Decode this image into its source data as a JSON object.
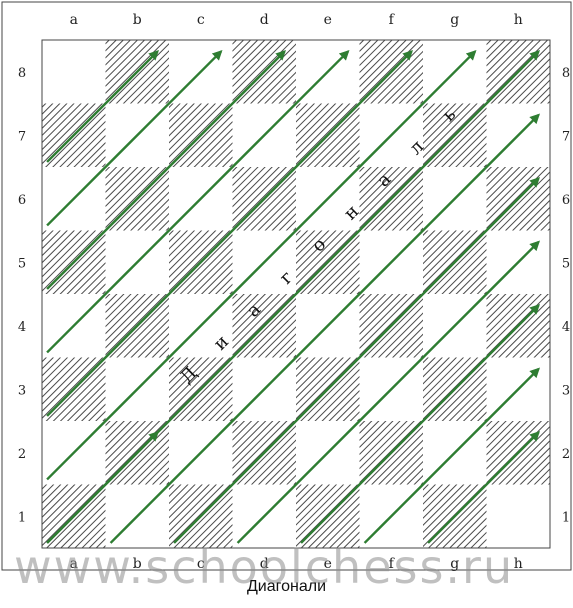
{
  "board": {
    "files": [
      "a",
      "b",
      "c",
      "d",
      "e",
      "f",
      "g",
      "h"
    ],
    "ranks": [
      "8",
      "7",
      "6",
      "5",
      "4",
      "3",
      "2",
      "1"
    ],
    "diagonal_label": "Диагональ",
    "colors": {
      "light_square": "#ffffff",
      "dark_hatch": "#555555",
      "arrow": "#2e7d32",
      "border": "#444444"
    }
  },
  "arrows": [
    {
      "from": "a1",
      "to": "b2"
    },
    {
      "from": "a7",
      "to": "b8"
    },
    {
      "from": "a6",
      "to": "c8"
    },
    {
      "from": "a5",
      "to": "d8"
    },
    {
      "from": "a4",
      "to": "e8"
    },
    {
      "from": "a3",
      "to": "f8"
    },
    {
      "from": "a2",
      "to": "g8"
    },
    {
      "from": "a1",
      "to": "h8"
    },
    {
      "from": "b1",
      "to": "h7"
    },
    {
      "from": "c1",
      "to": "h6"
    },
    {
      "from": "d1",
      "to": "h5"
    },
    {
      "from": "e1",
      "to": "h4"
    },
    {
      "from": "f1",
      "to": "h3"
    },
    {
      "from": "g1",
      "to": "h2"
    }
  ],
  "watermark": "www.schoolchess.ru",
  "caption": "Диагонали"
}
